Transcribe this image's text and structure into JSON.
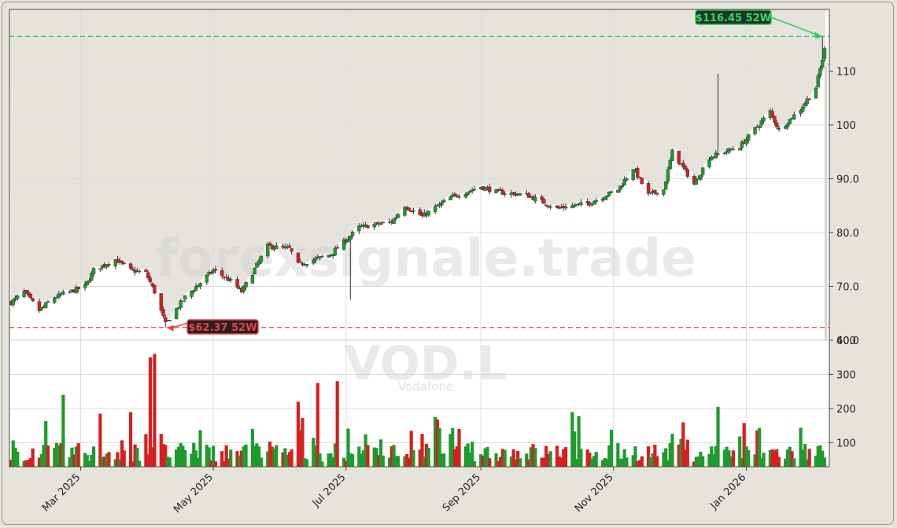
{
  "chart_data": {
    "type": "candlestick",
    "ticker": "VOD.L",
    "company": "Vodafone",
    "watermark": "forexsignale.trade",
    "price_axis": {
      "ylim": [
        60,
        120
      ],
      "ticks": [
        60,
        70,
        80,
        90,
        100,
        110
      ],
      "tick_labels": [
        "60.0",
        "70.0",
        "80.0",
        "90.0",
        "100",
        "110"
      ]
    },
    "volume_axis": {
      "ylim": [
        30,
        400
      ],
      "ticks": [
        100,
        200,
        300,
        400
      ],
      "tick_labels": [
        "100",
        "200",
        "300",
        "400"
      ]
    },
    "x_axis": {
      "start": "2025-01-28",
      "end": "2026-02-06",
      "tick_dates": [
        "2025-03-01",
        "2025-05-01",
        "2025-07-01",
        "2025-09-01",
        "2025-11-01",
        "2026-01-01"
      ],
      "tick_labels": [
        "Mar 2025",
        "May 2025",
        "Jul 2025",
        "Sep 2025",
        "Nov 2025",
        "Jan 2026"
      ]
    },
    "high_52w": {
      "value": 116.45,
      "label": "$116.45 52W",
      "date": "2026-02-05"
    },
    "low_52w": {
      "value": 62.37,
      "label": "$62.37 52W",
      "date": "2025-04-09"
    },
    "grid": true,
    "colors": {
      "up": "#1e9a2e",
      "down": "#d81e1e",
      "high_line": "#2ecc5a",
      "low_line": "#e04848",
      "plot_bg": "#ffffff",
      "frame_bg": "#e6e3dd"
    },
    "price_anchors": [
      [
        "2025-01-28",
        67
      ],
      [
        "2025-02-03",
        69
      ],
      [
        "2025-02-10",
        65.5
      ],
      [
        "2025-02-17",
        68
      ],
      [
        "2025-03-03",
        70
      ],
      [
        "2025-03-07",
        73
      ],
      [
        "2025-03-17",
        75
      ],
      [
        "2025-03-24",
        73
      ],
      [
        "2025-03-31",
        72.5
      ],
      [
        "2025-04-04",
        69
      ],
      [
        "2025-04-09",
        63
      ],
      [
        "2025-04-18",
        68
      ],
      [
        "2025-05-01",
        73
      ],
      [
        "2025-05-09",
        71
      ],
      [
        "2025-05-14",
        69
      ],
      [
        "2025-05-26",
        77.5
      ],
      [
        "2025-06-05",
        77
      ],
      [
        "2025-06-09",
        74
      ],
      [
        "2025-06-24",
        76
      ],
      [
        "2025-07-02",
        79
      ],
      [
        "2025-07-07",
        81
      ],
      [
        "2025-07-22",
        82
      ],
      [
        "2025-07-28",
        85
      ],
      [
        "2025-08-05",
        83
      ],
      [
        "2025-08-18",
        86.5
      ],
      [
        "2025-09-01",
        88.5
      ],
      [
        "2025-09-09",
        87.5
      ],
      [
        "2025-09-22",
        87
      ],
      [
        "2025-10-06",
        84.5
      ],
      [
        "2025-10-21",
        85.5
      ],
      [
        "2025-11-03",
        88
      ],
      [
        "2025-11-10",
        92
      ],
      [
        "2025-11-17",
        87
      ],
      [
        "2025-11-24",
        88
      ],
      [
        "2025-11-28",
        95
      ],
      [
        "2025-12-08",
        89
      ],
      [
        "2025-12-15",
        94
      ],
      [
        "2025-12-29",
        96
      ],
      [
        "2026-01-12",
        102.5
      ],
      [
        "2026-01-16",
        99
      ],
      [
        "2026-01-26",
        103
      ],
      [
        "2026-02-02",
        107
      ],
      [
        "2026-02-06",
        114
      ]
    ],
    "volume_spikes": [
      [
        "2025-02-21",
        240
      ],
      [
        "2025-04-02",
        350
      ],
      [
        "2025-04-04",
        360
      ],
      [
        "2025-06-18",
        275
      ],
      [
        "2025-06-27",
        280
      ],
      [
        "2025-06-09",
        220
      ],
      [
        "2025-08-11",
        175
      ],
      [
        "2025-10-13",
        190
      ],
      [
        "2025-12-19",
        205
      ],
      [
        "2025-03-10",
        185
      ],
      [
        "2025-03-24",
        190
      ]
    ]
  }
}
